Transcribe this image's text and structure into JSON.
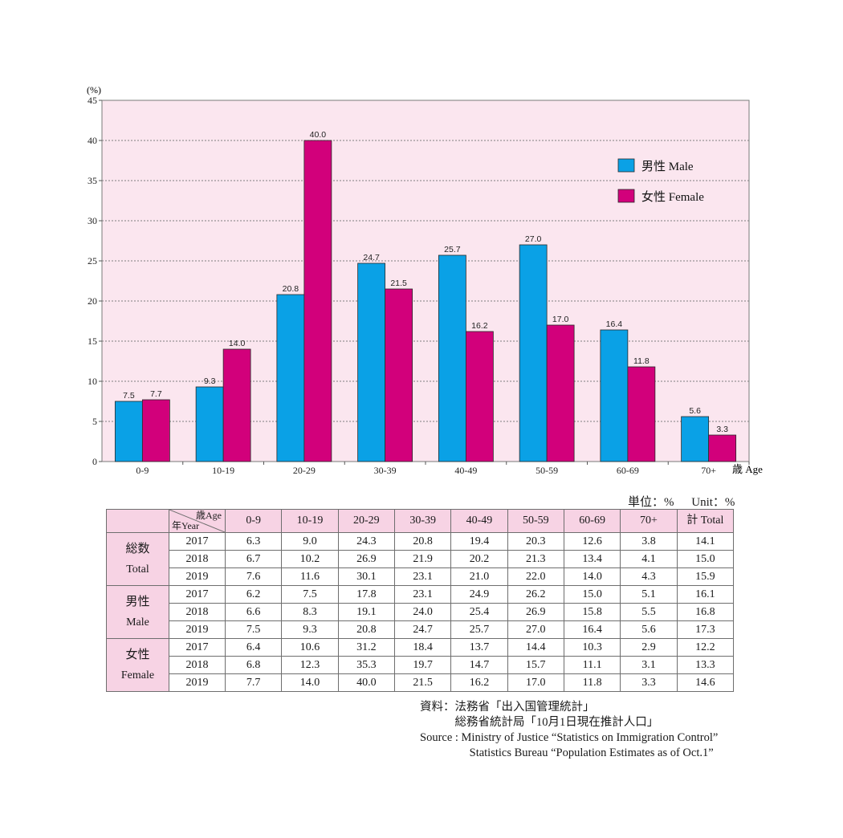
{
  "chart_data": {
    "type": "bar",
    "y_unit": "(%)",
    "x_unit": "歳 Age",
    "ylim": [
      0,
      45
    ],
    "y_ticks": [
      "0",
      "5",
      "10",
      "15",
      "20",
      "25",
      "30",
      "35",
      "40",
      "45"
    ],
    "grid": "horizontal dashed",
    "legend_position": "top-right",
    "categories": [
      "0-9",
      "10-19",
      "20-29",
      "30-39",
      "40-49",
      "50-59",
      "60-69",
      "70+"
    ],
    "series": [
      {
        "name": "男性 Male",
        "color": "#0aa1e6",
        "values": [
          7.5,
          9.3,
          20.8,
          24.7,
          25.7,
          27.0,
          16.4,
          5.6
        ],
        "labels": [
          "7.5",
          "9.3",
          "20.8",
          "24.7",
          "25.7",
          "27.0",
          "16.4",
          "5.6"
        ]
      },
      {
        "name": "女性 Female",
        "color": "#d2007b",
        "values": [
          7.7,
          14.0,
          40.0,
          21.5,
          16.2,
          17.0,
          11.8,
          3.3
        ],
        "labels": [
          "7.7",
          "14.0",
          "40.0",
          "21.5",
          "16.2",
          "17.0",
          "11.8",
          "3.3"
        ]
      }
    ],
    "plot_background": "#fbe6ef"
  },
  "table": {
    "unit_ja": "単位：%",
    "unit_en": "Unit：%",
    "corner_age": "歳Age",
    "corner_year": "年Year",
    "headers": [
      "0-9",
      "10-19",
      "20-29",
      "30-39",
      "40-49",
      "50-59",
      "60-69",
      "70+",
      "計 Total"
    ],
    "groups": [
      {
        "name_ja": "総数",
        "name_en": "Total",
        "rows": [
          {
            "year": "2017",
            "values": [
              "6.3",
              "9.0",
              "24.3",
              "20.8",
              "19.4",
              "20.3",
              "12.6",
              "3.8",
              "14.1"
            ]
          },
          {
            "year": "2018",
            "values": [
              "6.7",
              "10.2",
              "26.9",
              "21.9",
              "20.2",
              "21.3",
              "13.4",
              "4.1",
              "15.0"
            ]
          },
          {
            "year": "2019",
            "values": [
              "7.6",
              "11.6",
              "30.1",
              "23.1",
              "21.0",
              "22.0",
              "14.0",
              "4.3",
              "15.9"
            ]
          }
        ]
      },
      {
        "name_ja": "男性",
        "name_en": "Male",
        "rows": [
          {
            "year": "2017",
            "values": [
              "6.2",
              "7.5",
              "17.8",
              "23.1",
              "24.9",
              "26.2",
              "15.0",
              "5.1",
              "16.1"
            ]
          },
          {
            "year": "2018",
            "values": [
              "6.6",
              "8.3",
              "19.1",
              "24.0",
              "25.4",
              "26.9",
              "15.8",
              "5.5",
              "16.8"
            ]
          },
          {
            "year": "2019",
            "values": [
              "7.5",
              "9.3",
              "20.8",
              "24.7",
              "25.7",
              "27.0",
              "16.4",
              "5.6",
              "17.3"
            ]
          }
        ]
      },
      {
        "name_ja": "女性",
        "name_en": "Female",
        "rows": [
          {
            "year": "2017",
            "values": [
              "6.4",
              "10.6",
              "31.2",
              "18.4",
              "13.7",
              "14.4",
              "10.3",
              "2.9",
              "12.2"
            ]
          },
          {
            "year": "2018",
            "values": [
              "6.8",
              "12.3",
              "35.3",
              "19.7",
              "14.7",
              "15.7",
              "11.1",
              "3.1",
              "13.3"
            ]
          },
          {
            "year": "2019",
            "values": [
              "7.7",
              "14.0",
              "40.0",
              "21.5",
              "16.2",
              "17.0",
              "11.8",
              "3.3",
              "14.6"
            ]
          }
        ]
      }
    ]
  },
  "source": {
    "ja_line1": "資料：法務省「出入国管理統計」",
    "ja_line2": "　　　総務省統計局「10月1日現在推計人口」",
    "en_line1": "Source : Ministry of Justice “Statistics on Immigration Control”",
    "en_line2": "　　　　 Statistics Bureau “Population Estimates as of Oct.1”"
  }
}
